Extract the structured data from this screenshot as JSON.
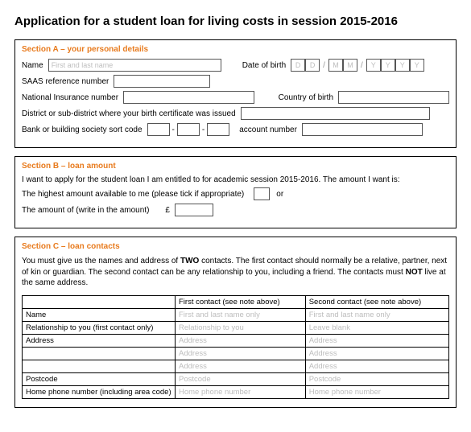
{
  "title": "Application for a student loan for living costs in session 2015-2016",
  "accent_color": "#e87b1e",
  "sectionA": {
    "title": "Section A – your personal details",
    "name_label": "Name",
    "name_placeholder": "First and last name",
    "dob_label": "Date of birth",
    "dob_placeholders": [
      "D",
      "D",
      "M",
      "M",
      "Y",
      "Y",
      "Y",
      "Y"
    ],
    "saas_label": "SAAS reference number",
    "ni_label": "National Insurance number",
    "cob_label": "Country of birth",
    "district_label": "District or sub-district where your birth certificate was issued",
    "sort_label": "Bank or building society sort code",
    "acct_label": "account number"
  },
  "sectionB": {
    "title": "Section B – loan amount",
    "intro": "I want to apply for the student loan I am entitled to for academic session 2015-2016.   The amount I want is:",
    "highest_label": "The highest amount available to me (please tick if appropriate)",
    "or_label": "or",
    "amount_label": "The amount of (write in the amount)",
    "currency": "£"
  },
  "sectionC": {
    "title": "Section C – loan contacts",
    "intro_pre": "You must give us the names and address of ",
    "intro_bold1": "TWO",
    "intro_mid": " contacts.   The first contact should normally be a relative, partner, next of kin or guardian.   The second contact can be any relationship to you, including a friend.   The contacts must ",
    "intro_bold2": "NOT",
    "intro_post": " live at the same address.",
    "col_first": "First contact (see note above)",
    "col_second": "Second contact (see note above)",
    "rows": [
      {
        "label": "Name",
        "ph1": "First and last name only",
        "ph2": "First and last name only"
      },
      {
        "label": "Relationship to you (first contact only)",
        "ph1": "Relationship to you",
        "ph2": "Leave blank"
      },
      {
        "label": "Address",
        "ph1": "Address",
        "ph2": "Address"
      },
      {
        "label": "",
        "ph1": "Address",
        "ph2": "Address"
      },
      {
        "label": "",
        "ph1": "Address",
        "ph2": "Address"
      },
      {
        "label": "Postcode",
        "ph1": "Postcode",
        "ph2": "Postcode"
      },
      {
        "label": "Home phone number (including area code)",
        "ph1": "Home phone number",
        "ph2": "Home phone number"
      }
    ]
  }
}
